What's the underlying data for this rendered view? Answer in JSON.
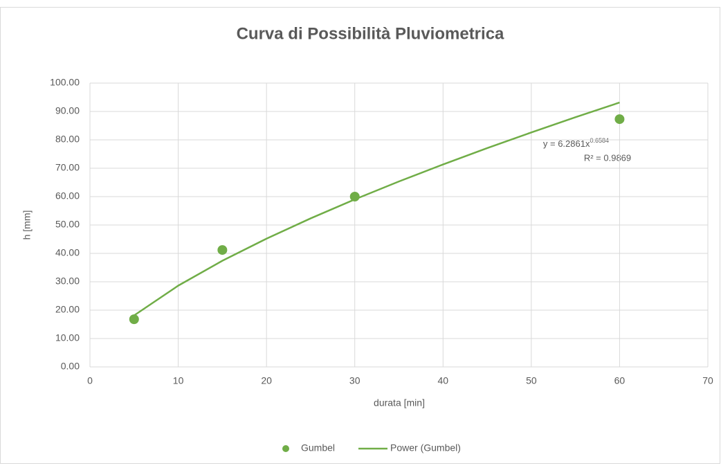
{
  "chart_data": {
    "type": "scatter",
    "title": "Curva di Possibilità Pluviometrica",
    "x_label": "durata [min]",
    "y_label": "h [mm]",
    "xlim": [
      0,
      70
    ],
    "xticks": [
      0,
      10,
      20,
      30,
      40,
      50,
      60,
      70
    ],
    "ylim": [
      0,
      100
    ],
    "yticks": [
      {
        "value": 0,
        "label": "0.00"
      },
      {
        "value": 10,
        "label": "10.00"
      },
      {
        "value": 20,
        "label": "20.00"
      },
      {
        "value": 30,
        "label": "30.00"
      },
      {
        "value": 40,
        "label": "40.00"
      },
      {
        "value": 50,
        "label": "50.00"
      },
      {
        "value": 60,
        "label": "60.00"
      },
      {
        "value": 70,
        "label": "70.00"
      },
      {
        "value": 80,
        "label": "80.00"
      },
      {
        "value": 90,
        "label": "90.00"
      },
      {
        "value": 100,
        "label": "100.00"
      }
    ],
    "grid": true,
    "legend": "bottom",
    "series": [
      {
        "name": "Gumbel",
        "color": "#70ad47",
        "x": [
          5,
          15,
          30,
          60
        ],
        "values": [
          16.8,
          41.2,
          60.0,
          87.3
        ]
      },
      {
        "name": "Power (Gumbel)",
        "color": "#70ad47",
        "x": [
          5,
          10,
          15,
          20,
          25,
          30,
          35,
          40,
          45,
          50,
          55,
          60
        ],
        "values": [
          18.14,
          28.63,
          37.4,
          45.18,
          52.33,
          59.02,
          65.33,
          71.33,
          77.08,
          82.61,
          87.96,
          93.15
        ]
      }
    ],
    "trendline_label": {
      "equation": "y = 6.2861x",
      "exponent": "0.6584",
      "r_squared": "R² = 0.9869"
    }
  }
}
